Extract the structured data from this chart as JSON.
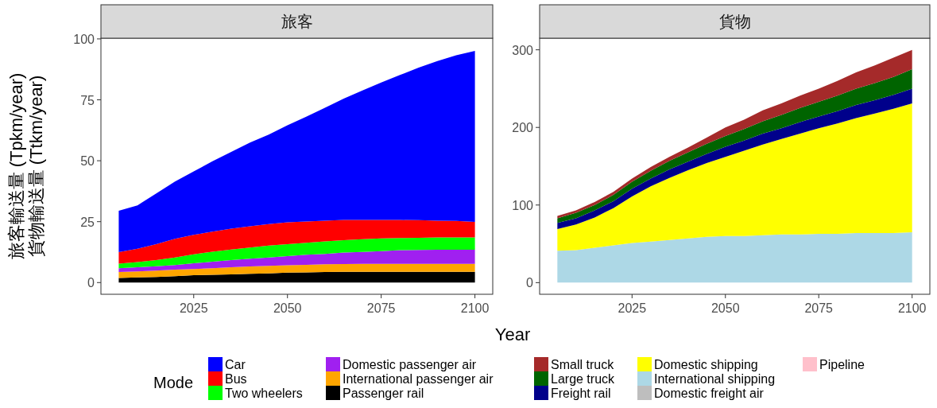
{
  "chart_data": [
    {
      "type": "area",
      "stacked": true,
      "title": "旅客",
      "xlabel": "Year",
      "ylabel": "旅客輸送量 (Tpkm/year)\n貨物輸送量 (Ttkm/year)",
      "legend": "bottom",
      "legend_title": "Mode",
      "x": [
        2005,
        2010,
        2015,
        2020,
        2025,
        2030,
        2035,
        2040,
        2045,
        2050,
        2055,
        2060,
        2065,
        2070,
        2075,
        2080,
        2085,
        2090,
        2095,
        2100
      ],
      "xlim": [
        2000.25,
        2104.75
      ],
      "xticks": [
        2025,
        2050,
        2075,
        2100
      ],
      "ylim": [
        -4.8,
        100.3
      ],
      "yticks": [
        0,
        25,
        50,
        75,
        100
      ],
      "series": [
        {
          "name": "Passenger rail",
          "color": "#000000",
          "values": [
            1.9,
            2.1,
            2.3,
            2.6,
            3.0,
            3.2,
            3.4,
            3.6,
            3.8,
            4.1,
            4.2,
            4.3,
            4.4,
            4.4,
            4.4,
            4.4,
            4.4,
            4.4,
            4.4,
            4.4
          ]
        },
        {
          "name": "International passenger air",
          "color": "#ffa500",
          "values": [
            2.4,
            2.5,
            2.6,
            2.7,
            2.6,
            2.7,
            2.9,
            3.0,
            3.1,
            3.0,
            3.1,
            3.2,
            3.2,
            3.3,
            3.3,
            3.3,
            3.3,
            3.3,
            3.3,
            3.3
          ]
        },
        {
          "name": "Domestic passenger air",
          "color": "#a020f0",
          "values": [
            1.6,
            1.7,
            1.8,
            1.9,
            2.3,
            2.7,
            2.9,
            3.2,
            3.4,
            3.8,
            4.1,
            4.3,
            4.7,
            4.9,
            5.2,
            5.6,
            5.7,
            5.8,
            5.8,
            5.8
          ]
        },
        {
          "name": "Two wheelers",
          "color": "#00ff00",
          "values": [
            1.9,
            2.1,
            2.5,
            3.1,
            3.7,
            4.1,
            4.4,
            4.6,
            4.9,
            4.9,
            4.9,
            5.1,
            5.1,
            5.2,
            5.2,
            5.0,
            5.0,
            5.0,
            5.0,
            5.0
          ]
        },
        {
          "name": "Bus",
          "color": "#ff0000",
          "values": [
            4.7,
            5.5,
            6.6,
            7.7,
            8.0,
            8.2,
            8.5,
            8.7,
            8.8,
            8.9,
            8.8,
            8.5,
            8.3,
            7.9,
            7.6,
            7.4,
            7.2,
            6.9,
            6.8,
            6.4
          ]
        },
        {
          "name": "Car",
          "color": "#0000ff",
          "values": [
            17.0,
            17.8,
            20.8,
            23.5,
            26.0,
            28.9,
            31.5,
            34.4,
            36.7,
            39.9,
            43.0,
            46.3,
            49.8,
            53.1,
            56.4,
            59.5,
            62.6,
            65.5,
            68.0,
            70.2
          ]
        }
      ]
    },
    {
      "type": "area",
      "stacked": true,
      "title": "貨物",
      "legend": "bottom",
      "x": [
        2005,
        2010,
        2015,
        2020,
        2025,
        2030,
        2035,
        2040,
        2045,
        2050,
        2055,
        2060,
        2065,
        2070,
        2075,
        2080,
        2085,
        2090,
        2095,
        2100
      ],
      "xlim": [
        2000.25,
        2104.75
      ],
      "xticks": [
        2025,
        2050,
        2075,
        2100
      ],
      "ylim": [
        -15,
        315
      ],
      "yticks": [
        0,
        100,
        200,
        300
      ],
      "series": [
        {
          "name": "Pipeline",
          "color": "#ffc0cb",
          "values": [
            null,
            null,
            null,
            null,
            null,
            null,
            null,
            null,
            null,
            null,
            null,
            null,
            null,
            null,
            null,
            null,
            null,
            null,
            null,
            null
          ]
        },
        {
          "name": "Domestic freight air",
          "color": "#bebebe",
          "values": [
            null,
            null,
            null,
            null,
            null,
            null,
            null,
            null,
            null,
            null,
            null,
            null,
            null,
            null,
            null,
            null,
            null,
            null,
            null,
            null
          ]
        },
        {
          "name": "International shipping",
          "color": "#add8e6",
          "values": [
            41,
            42,
            45,
            48,
            51,
            53,
            55,
            57,
            59,
            60,
            60,
            61,
            62,
            62,
            63,
            63,
            64,
            64,
            64,
            65
          ]
        },
        {
          "name": "Domestic shipping",
          "color": "#ffff00",
          "values": [
            28,
            33,
            39,
            48,
            60,
            71,
            80,
            88,
            95,
            102,
            110,
            117,
            123,
            130,
            136,
            142,
            148,
            154,
            160,
            166
          ]
        },
        {
          "name": "Freight rail",
          "color": "#00008b",
          "values": [
            8,
            8,
            9,
            9,
            10,
            10,
            11,
            11,
            12,
            13,
            13,
            14,
            14,
            15,
            15,
            16,
            17,
            17,
            18,
            19
          ]
        },
        {
          "name": "Large truck",
          "color": "#006400",
          "values": [
            6,
            7,
            7,
            8,
            9,
            10,
            11,
            12,
            13,
            14,
            15,
            16,
            17,
            18,
            19,
            20,
            21,
            22,
            23,
            25
          ]
        },
        {
          "name": "Small truck",
          "color": "#a52a2a",
          "values": [
            3,
            3,
            4,
            4,
            4,
            5,
            5,
            6,
            8,
            11,
            12,
            14,
            15,
            16,
            17,
            19,
            21,
            23,
            25,
            25
          ]
        }
      ]
    }
  ]
}
